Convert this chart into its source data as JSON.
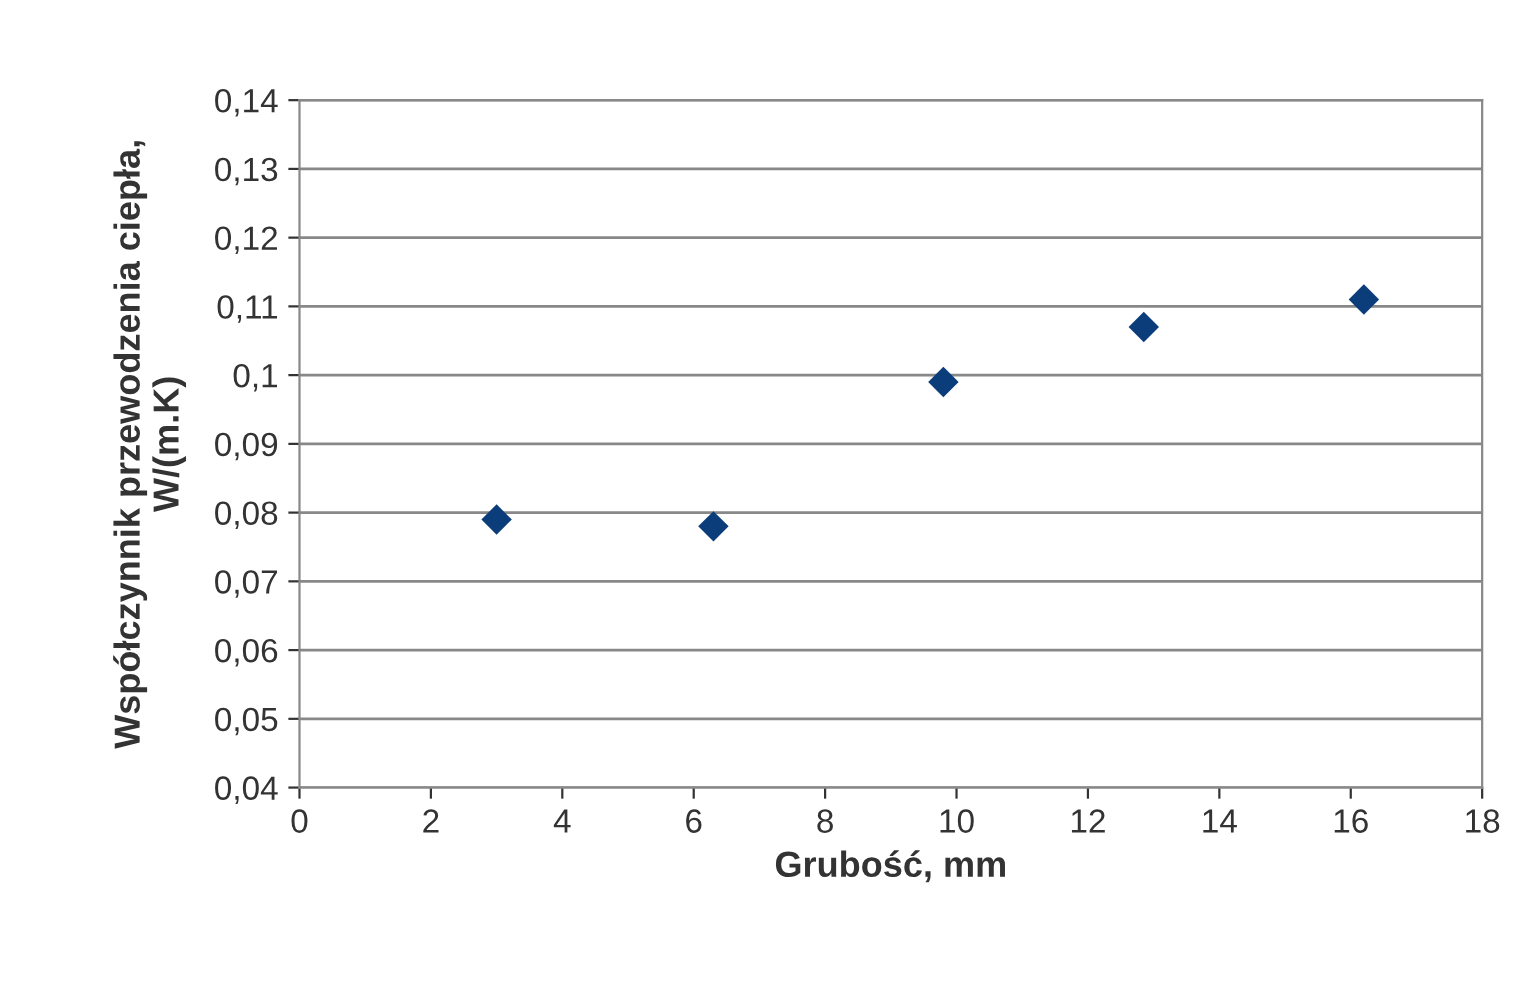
{
  "chart_data": {
    "type": "scatter",
    "xlabel": "Grubość, mm",
    "ylabel": "Współczynnik przewodzenia ciepła,\nW/(m.K)",
    "x": [
      3.0,
      6.3,
      9.8,
      12.85,
      16.2
    ],
    "values": [
      0.079,
      0.078,
      0.099,
      0.107,
      0.111
    ],
    "color": "#0b3d7a",
    "marker": "diamond",
    "grid": "y",
    "xlim": [
      0,
      18
    ],
    "xticks": [
      0,
      2,
      4,
      6,
      8,
      10,
      12,
      14,
      16,
      18
    ],
    "ylim": [
      0.04,
      0.14
    ],
    "yticks": [
      {
        "value": 0.04,
        "label": "0,04"
      },
      {
        "value": 0.05,
        "label": "0,05"
      },
      {
        "value": 0.06,
        "label": "0,06"
      },
      {
        "value": 0.07,
        "label": "0,07"
      },
      {
        "value": 0.08,
        "label": "0,08"
      },
      {
        "value": 0.09,
        "label": "0,09"
      },
      {
        "value": 0.1,
        "label": "0,1"
      },
      {
        "value": 0.11,
        "label": "0,11"
      },
      {
        "value": 0.12,
        "label": "0,12"
      },
      {
        "value": 0.13,
        "label": "0,13"
      },
      {
        "value": 0.14,
        "label": "0,14"
      }
    ]
  }
}
